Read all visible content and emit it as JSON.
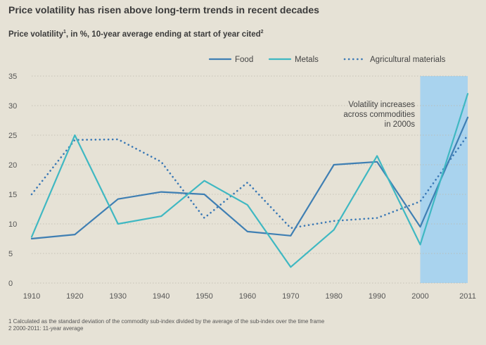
{
  "title": "Price volatility has risen above long-term trends in recent decades",
  "subtitle": "Price volatility",
  "subtitle_tail": ", in %, 10-year average ending at start of year cited",
  "subtitle_sup_1": "1",
  "subtitle_sup_2": "2",
  "annotation": [
    "Volatility increases",
    "across commodities",
    "in 2000s"
  ],
  "footnotes": [
    "1  Calculated as the standard deviation of the commodity sub-index divided by the average of the sub-index over the time frame",
    "2  2000-2011: 11-year average"
  ],
  "colors": {
    "food": "#3f7fb3",
    "metals": "#3fb8c2",
    "agricultural": "#3a78b5",
    "highlight": "#a9d3ee",
    "gridline": "#bdb8ab",
    "tick": "#555555"
  },
  "chart_data": {
    "type": "line",
    "x": [
      1910,
      1920,
      1930,
      1940,
      1950,
      1960,
      1970,
      1980,
      1990,
      2000,
      2011
    ],
    "xticks": [
      "1910",
      "1920",
      "1930",
      "1940",
      "1950",
      "1960",
      "1970",
      "1980",
      "1990",
      "2000",
      "2011"
    ],
    "ylim": [
      0,
      35
    ],
    "yticks": [
      "0",
      "5",
      "10",
      "15",
      "20",
      "25",
      "30",
      "35"
    ],
    "grid": true,
    "legend_position": "top-right",
    "highlight_range": [
      2000,
      2011
    ],
    "series": [
      {
        "name": "Food",
        "style": "solid",
        "values": [
          7.5,
          8.2,
          14.2,
          15.4,
          15.0,
          8.7,
          8.0,
          20.0,
          20.5,
          9.5,
          28.0
        ]
      },
      {
        "name": "Metals",
        "style": "solid",
        "values": [
          7.8,
          25.0,
          10.0,
          11.3,
          17.3,
          13.2,
          2.7,
          9.0,
          21.5,
          6.5,
          32.0
        ]
      },
      {
        "name": "Agricultural materials",
        "style": "dotted",
        "values": [
          15.0,
          24.2,
          24.3,
          20.5,
          11.0,
          17.0,
          9.3,
          10.5,
          11.0,
          13.8,
          25.0
        ]
      }
    ]
  }
}
